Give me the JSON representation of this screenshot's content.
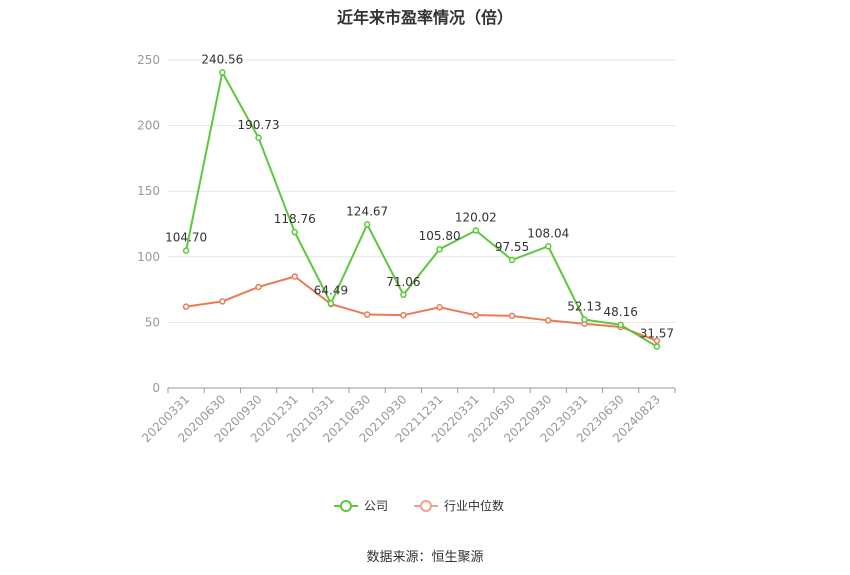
{
  "title": "近年来市盈率情况（倍）",
  "source": "数据来源：恒生聚源",
  "legend": [
    {
      "name": "公司",
      "color": "#5cc83c"
    },
    {
      "name": "行业中位数",
      "color": "#f5a08c"
    }
  ],
  "chart_data": {
    "type": "line",
    "title": "近年来市盈率情况（倍）",
    "xlabel": "",
    "ylabel": "",
    "ylim": [
      0,
      250
    ],
    "yticks": [
      0,
      50,
      100,
      150,
      200,
      250
    ],
    "grid": true,
    "legend_position": "bottom",
    "categories": [
      "20200331",
      "20200630",
      "20200930",
      "20201231",
      "20210331",
      "20210630",
      "20210930",
      "20211231",
      "20220331",
      "20220630",
      "20220930",
      "20230331",
      "20230630",
      "20240823"
    ],
    "series": [
      {
        "name": "公司",
        "color": "#5cc83c",
        "labeled": true,
        "values": [
          104.7,
          240.56,
          190.73,
          118.76,
          64.49,
          124.67,
          71.06,
          105.8,
          120.02,
          97.55,
          108.04,
          52.13,
          48.16,
          31.57
        ]
      },
      {
        "name": "行业中位数",
        "color": "#eb7a55",
        "labeled": false,
        "values": [
          62,
          66,
          77,
          85,
          64,
          56,
          55.5,
          61.5,
          55.5,
          55,
          51.5,
          49,
          46.5,
          36
        ]
      }
    ]
  }
}
